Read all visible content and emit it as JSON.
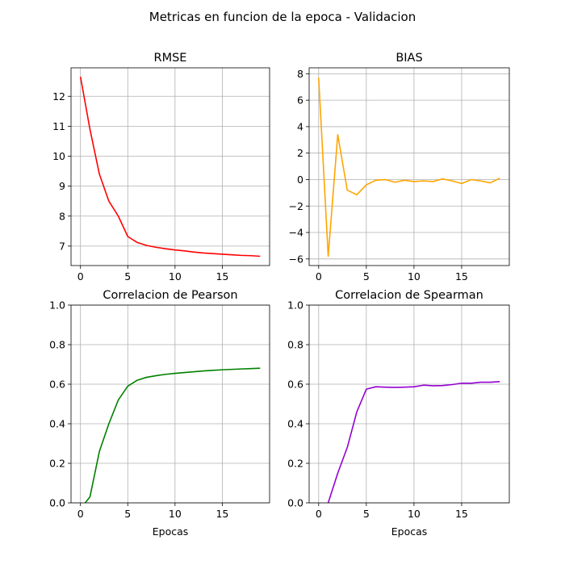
{
  "figure": {
    "title": "Metricas en funcion de la epoca - Validacion"
  },
  "chart_data": [
    {
      "type": "line",
      "title": "RMSE",
      "xlabel": "",
      "ylabel": "",
      "color": "#ff0000",
      "grid": true,
      "xlim": [
        -1,
        20
      ],
      "ylim": [
        6.35,
        12.95
      ],
      "xticks": [
        0,
        5,
        10,
        15
      ],
      "yticks": [
        7,
        8,
        9,
        10,
        11,
        12
      ],
      "x": [
        0,
        1,
        2,
        3,
        4,
        5,
        6,
        7,
        8,
        9,
        10,
        11,
        12,
        13,
        14,
        15,
        16,
        17,
        18,
        19
      ],
      "values": [
        12.65,
        10.9,
        9.4,
        8.5,
        8.0,
        7.32,
        7.12,
        7.02,
        6.96,
        6.91,
        6.87,
        6.84,
        6.8,
        6.77,
        6.75,
        6.73,
        6.71,
        6.69,
        6.68,
        6.66
      ]
    },
    {
      "type": "line",
      "title": "BIAS",
      "xlabel": "",
      "ylabel": "",
      "color": "#ffa500",
      "grid": true,
      "xlim": [
        -1,
        20
      ],
      "ylim": [
        -6.5,
        8.45
      ],
      "xticks": [
        0,
        5,
        10,
        15
      ],
      "yticks": [
        -6,
        -4,
        -2,
        0,
        2,
        4,
        6,
        8
      ],
      "x": [
        0,
        1,
        2,
        3,
        4,
        5,
        6,
        7,
        8,
        9,
        10,
        11,
        12,
        13,
        14,
        15,
        16,
        17,
        18,
        19
      ],
      "values": [
        7.7,
        -5.8,
        3.4,
        -0.8,
        -1.15,
        -0.4,
        -0.05,
        0.0,
        -0.2,
        -0.05,
        -0.15,
        -0.1,
        -0.15,
        0.05,
        -0.1,
        -0.3,
        0.0,
        -0.1,
        -0.25,
        0.1
      ]
    },
    {
      "type": "line",
      "title": "Correlacion de Pearson",
      "xlabel": "Epocas",
      "ylabel": "",
      "color": "#008000",
      "grid": true,
      "xlim": [
        -1,
        20
      ],
      "ylim": [
        0,
        1
      ],
      "xticks": [
        0,
        5,
        10,
        15
      ],
      "yticks": [
        0.0,
        0.2,
        0.4,
        0.6,
        0.8,
        1.0
      ],
      "x": [
        0,
        1,
        2,
        3,
        4,
        5,
        6,
        7,
        8,
        9,
        10,
        11,
        12,
        13,
        14,
        15,
        16,
        17,
        18,
        19
      ],
      "values": [
        -0.03,
        0.03,
        0.26,
        0.4,
        0.52,
        0.59,
        0.62,
        0.635,
        0.643,
        0.65,
        0.655,
        0.659,
        0.663,
        0.667,
        0.67,
        0.673,
        0.675,
        0.677,
        0.679,
        0.681
      ]
    },
    {
      "type": "line",
      "title": "Correlacion de Spearman",
      "xlabel": "Epocas",
      "ylabel": "",
      "color": "#9400d3",
      "grid": true,
      "xlim": [
        -1,
        20
      ],
      "ylim": [
        0,
        1
      ],
      "xticks": [
        0,
        5,
        10,
        15
      ],
      "yticks": [
        0.0,
        0.2,
        0.4,
        0.6,
        0.8,
        1.0
      ],
      "x": [
        0,
        1,
        2,
        3,
        4,
        5,
        6,
        7,
        8,
        9,
        10,
        11,
        12,
        13,
        14,
        15,
        16,
        17,
        18,
        19
      ],
      "values": [
        -0.12,
        0.0,
        0.15,
        0.28,
        0.46,
        0.575,
        0.587,
        0.585,
        0.584,
        0.585,
        0.587,
        0.595,
        0.592,
        0.593,
        0.598,
        0.605,
        0.605,
        0.61,
        0.61,
        0.613
      ]
    }
  ]
}
